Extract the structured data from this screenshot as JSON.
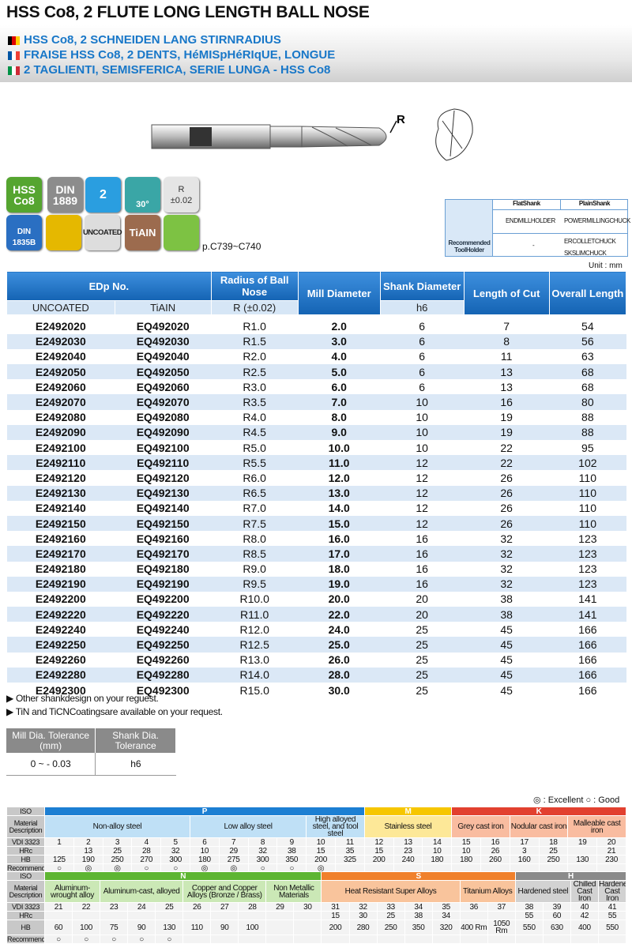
{
  "header": {
    "title": "HSS Co8, 2 FLUTE LONG LENGTH BALL NOSE",
    "lines": [
      "HSS Co8, 2 SCHNEIDEN LANG STIRNRADIUS",
      "FRAISE HSS Co8, 2 DENTS, HéMISpHéRIqUE, LONGUE",
      "2 TAGLIENTI, SEMISFERICA, SERIE LUNGA - HSS Co8"
    ]
  },
  "tool": {
    "radius_label": "R"
  },
  "badges": {
    "material": "HSS Co8",
    "din": "DIN 1889",
    "flutes": "2",
    "helix": "30°",
    "radius": "R",
    "radius_tol": "±0.02",
    "shank": "DIN 1835B",
    "uncoated": "UNCOATED",
    "tiain": "TiAIN",
    "reference": "p.C739~C740"
  },
  "toolholder": {
    "flat": "FlatShank",
    "plain": "PlainShank",
    "label": "Recommended ToolHolder",
    "row1": [
      "ENDMILLHOLDER",
      "POWERMILLINGCHUCK"
    ],
    "row2": [
      "-",
      "ERCOLLETCHUCK SKSLIMCHUCK"
    ]
  },
  "unit": "Unit : mm",
  "table": {
    "headers": [
      "EDp No.",
      "Radius of Ball Nose",
      "Mill Diameter",
      "Shank Diameter",
      "Length of Cut",
      "Overall Length"
    ],
    "subheaders": [
      "UNCOATED",
      "TiAIN",
      "R (±0.02)",
      "h6"
    ],
    "rows": [
      [
        "E2492020",
        "EQ492020",
        "R1.0",
        "2.0",
        6,
        7,
        54
      ],
      [
        "E2492030",
        "EQ492030",
        "R1.5",
        "3.0",
        6,
        8,
        56
      ],
      [
        "E2492040",
        "EQ492040",
        "R2.0",
        "4.0",
        6,
        11,
        63
      ],
      [
        "E2492050",
        "EQ492050",
        "R2.5",
        "5.0",
        6,
        13,
        68
      ],
      [
        "E2492060",
        "EQ492060",
        "R3.0",
        "6.0",
        6,
        13,
        68
      ],
      [
        "E2492070",
        "EQ492070",
        "R3.5",
        "7.0",
        10,
        16,
        80
      ],
      [
        "E2492080",
        "EQ492080",
        "R4.0",
        "8.0",
        10,
        19,
        88
      ],
      [
        "E2492090",
        "EQ492090",
        "R4.5",
        "9.0",
        10,
        19,
        88
      ],
      [
        "E2492100",
        "EQ492100",
        "R5.0",
        "10.0",
        10,
        22,
        95
      ],
      [
        "E2492110",
        "EQ492110",
        "R5.5",
        "11.0",
        12,
        22,
        102
      ],
      [
        "E2492120",
        "EQ492120",
        "R6.0",
        "12.0",
        12,
        26,
        110
      ],
      [
        "E2492130",
        "EQ492130",
        "R6.5",
        "13.0",
        12,
        26,
        110
      ],
      [
        "E2492140",
        "EQ492140",
        "R7.0",
        "14.0",
        12,
        26,
        110
      ],
      [
        "E2492150",
        "EQ492150",
        "R7.5",
        "15.0",
        12,
        26,
        110
      ],
      [
        "E2492160",
        "EQ492160",
        "R8.0",
        "16.0",
        16,
        32,
        123
      ],
      [
        "E2492170",
        "EQ492170",
        "R8.5",
        "17.0",
        16,
        32,
        123
      ],
      [
        "E2492180",
        "EQ492180",
        "R9.0",
        "18.0",
        16,
        32,
        123
      ],
      [
        "E2492190",
        "EQ492190",
        "R9.5",
        "19.0",
        16,
        32,
        123
      ],
      [
        "E2492200",
        "EQ492200",
        "R10.0",
        "20.0",
        20,
        38,
        141
      ],
      [
        "E2492220",
        "EQ492220",
        "R11.0",
        "22.0",
        20,
        38,
        141
      ],
      [
        "E2492240",
        "EQ492240",
        "R12.0",
        "24.0",
        25,
        45,
        166
      ],
      [
        "E2492250",
        "EQ492250",
        "R12.5",
        "25.0",
        25,
        45,
        166
      ],
      [
        "E2492260",
        "EQ492260",
        "R13.0",
        "26.0",
        25,
        45,
        166
      ],
      [
        "E2492280",
        "EQ492280",
        "R14.0",
        "28.0",
        25,
        45,
        166
      ],
      [
        "E2492300",
        "EQ492300",
        "R15.0",
        "30.0",
        25,
        45,
        166
      ]
    ]
  },
  "notes": [
    "Other shankdesign on your reguest.",
    "TiN and TiCNCoatingsare available on your request."
  ],
  "tolerance": {
    "headers": [
      "Mill Dia. Tolerance (mm)",
      "Shank Dia. Tolerance"
    ],
    "values": [
      "0 ~ - 0.03",
      "h6"
    ]
  },
  "legend": [
    "◎ : Excellent",
    "○ : Good"
  ],
  "materials": {
    "row_labels": [
      "ISO",
      "Material Description",
      "VDI 3323",
      "HRc",
      "HB",
      "Recommend"
    ],
    "blocks": [
      {
        "iso": [
          {
            "label": "P",
            "span": 11,
            "color": "#1c7fd3",
            "light": "#bfe0f6"
          },
          {
            "label": "M",
            "span": 3,
            "color": "#f6c600",
            "light": "#fde898"
          },
          {
            "label": "K",
            "span": 6,
            "color": "#e2402f",
            "light": "#f9bca0"
          }
        ],
        "desc": [
          {
            "label": "Non-alloy steel",
            "span": 5,
            "g": 0
          },
          {
            "label": "Low alloy steel",
            "span": 4,
            "g": 0
          },
          {
            "label": "High alloyed steel, and tool steel",
            "span": 2,
            "g": 0
          },
          {
            "label": "Stainless steel",
            "span": 3,
            "g": 1
          },
          {
            "label": "Grey cast iron",
            "span": 2,
            "g": 2
          },
          {
            "label": "Nodular cast iron",
            "span": 2,
            "g": 2
          },
          {
            "label": "Malleable cast iron",
            "span": 2,
            "g": 2
          }
        ],
        "vdi": [
          1,
          2,
          3,
          4,
          5,
          6,
          7,
          8,
          9,
          10,
          11,
          12,
          13,
          14,
          15,
          16,
          17,
          18,
          19,
          20
        ],
        "hrc": [
          null,
          13,
          25,
          28,
          32,
          10,
          29,
          32,
          38,
          15,
          35,
          15,
          23,
          10,
          10,
          26,
          3,
          25,
          null,
          21
        ],
        "hb": [
          125,
          190,
          250,
          270,
          300,
          180,
          275,
          300,
          350,
          200,
          325,
          200,
          240,
          180,
          180,
          260,
          160,
          250,
          130,
          230
        ],
        "recommend": [
          "○",
          "◎",
          "◎",
          "○",
          "○",
          "◎",
          "◎",
          "○",
          "○",
          "◎",
          null,
          null,
          null,
          null,
          null,
          null,
          null,
          null,
          null,
          null
        ]
      },
      {
        "iso": [
          {
            "label": "N",
            "span": 10,
            "color": "#5db532",
            "light": "#cbe8b6"
          },
          {
            "label": "S",
            "span": 7,
            "color": "#f0802b",
            "light": "#f9c49c"
          },
          {
            "label": "H",
            "span": 4,
            "color": "#8a8a8a",
            "light": "#d2d2d2"
          }
        ],
        "desc": [
          {
            "label": "Aluminum-wrought alloy",
            "span": 2,
            "g": 0
          },
          {
            "label": "Aluminum-cast, alloyed",
            "span": 3,
            "g": 0
          },
          {
            "label": "Copper and Copper Alloys (Bronze / Brass)",
            "span": 3,
            "g": 0
          },
          {
            "label": "Non Metallic Materials",
            "span": 2,
            "g": 0
          },
          {
            "label": "Heat Resistant Super Alloys",
            "span": 5,
            "g": 1
          },
          {
            "label": "Titanium Alloys",
            "span": 2,
            "g": 1
          },
          {
            "label": "Hardened steel",
            "span": 2,
            "g": 2
          },
          {
            "label": "Chilled Cast Iron",
            "span": 1,
            "g": 2
          },
          {
            "label": "Hardened Cast Iron",
            "span": 1,
            "g": 2
          }
        ],
        "vdi": [
          21,
          22,
          23,
          24,
          25,
          26,
          27,
          28,
          29,
          30,
          31,
          32,
          33,
          34,
          35,
          36,
          37,
          38,
          39,
          40,
          41
        ],
        "hrc": [
          null,
          null,
          null,
          null,
          null,
          null,
          null,
          null,
          null,
          null,
          15,
          30,
          25,
          38,
          34,
          null,
          null,
          55,
          60,
          42,
          55
        ],
        "hb": [
          60,
          100,
          75,
          90,
          130,
          110,
          90,
          100,
          null,
          null,
          200,
          280,
          250,
          350,
          320,
          "400 Rm",
          "1050 Rm",
          550,
          630,
          400,
          550
        ],
        "recommend": [
          "○",
          "○",
          "○",
          "○",
          "○",
          null,
          null,
          null,
          null,
          null,
          null,
          null,
          null,
          null,
          null,
          null,
          null,
          null,
          null,
          null,
          null
        ]
      }
    ]
  }
}
